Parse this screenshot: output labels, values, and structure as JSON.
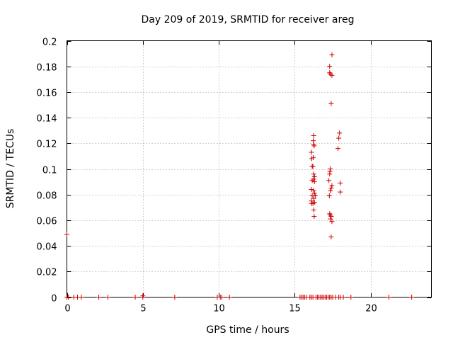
{
  "chart_data": {
    "type": "scatter",
    "title": "Day 209 of 2019, SRMTID for receiver areg",
    "xlabel": "GPS time / hours",
    "ylabel": "SRMTID / TECUs",
    "xlim": [
      0,
      24
    ],
    "ylim": [
      0,
      0.2
    ],
    "xticks": [
      0,
      5,
      10,
      15,
      20
    ],
    "xtick_labels": [
      "0",
      "5",
      "10",
      "15",
      "20"
    ],
    "yticks": [
      0,
      0.02,
      0.04,
      0.06,
      0.08,
      0.1,
      0.12,
      0.14,
      0.16,
      0.18,
      0.2
    ],
    "ytick_labels": [
      "0",
      "0.02",
      "0.04",
      "0.06",
      "0.08",
      "0.1",
      "0.12",
      "0.14",
      "0.16",
      "0.18",
      "0.2"
    ],
    "grid": true,
    "marker": "+",
    "color": "#cc0000",
    "series": [
      {
        "name": "areg",
        "points": [
          [
            0.0,
            0.049
          ],
          [
            0.0,
            0.0
          ],
          [
            0.1,
            0.0
          ],
          [
            0.45,
            0.0
          ],
          [
            0.7,
            0.0
          ],
          [
            0.95,
            0.0
          ],
          [
            2.1,
            0.0
          ],
          [
            2.7,
            0.0
          ],
          [
            4.5,
            0.0
          ],
          [
            5.0,
            0.0
          ],
          [
            5.0,
            0.001
          ],
          [
            7.1,
            0.0
          ],
          [
            9.9,
            0.0
          ],
          [
            10.1,
            0.0
          ],
          [
            10.2,
            0.0
          ],
          [
            10.7,
            0.0
          ],
          [
            15.35,
            0.0
          ],
          [
            15.45,
            0.0
          ],
          [
            15.55,
            0.0
          ],
          [
            15.65,
            0.0
          ],
          [
            15.75,
            0.0
          ],
          [
            16.0,
            0.0
          ],
          [
            16.1,
            0.0
          ],
          [
            16.2,
            0.0
          ],
          [
            16.4,
            0.0
          ],
          [
            16.5,
            0.0
          ],
          [
            16.6,
            0.0
          ],
          [
            16.7,
            0.0
          ],
          [
            16.8,
            0.0
          ],
          [
            16.9,
            0.0
          ],
          [
            17.0,
            0.0
          ],
          [
            17.1,
            0.0
          ],
          [
            17.2,
            0.0
          ],
          [
            17.3,
            0.0
          ],
          [
            17.4,
            0.0
          ],
          [
            17.5,
            0.0
          ],
          [
            17.7,
            0.0
          ],
          [
            17.9,
            0.0
          ],
          [
            18.0,
            0.0
          ],
          [
            18.2,
            0.0
          ],
          [
            18.7,
            0.0
          ],
          [
            21.2,
            0.0
          ],
          [
            22.7,
            0.0
          ],
          [
            16.1,
            0.113
          ],
          [
            16.12,
            0.108
          ],
          [
            16.15,
            0.102
          ],
          [
            16.15,
            0.091
          ],
          [
            16.1,
            0.084
          ],
          [
            16.15,
            0.079
          ],
          [
            16.1,
            0.075
          ],
          [
            16.12,
            0.073
          ],
          [
            16.25,
            0.126
          ],
          [
            16.22,
            0.122
          ],
          [
            16.25,
            0.119
          ],
          [
            16.28,
            0.118
          ],
          [
            16.22,
            0.109
          ],
          [
            16.2,
            0.102
          ],
          [
            16.25,
            0.096
          ],
          [
            16.3,
            0.094
          ],
          [
            16.25,
            0.092
          ],
          [
            16.3,
            0.09
          ],
          [
            16.25,
            0.083
          ],
          [
            16.3,
            0.081
          ],
          [
            16.35,
            0.079
          ],
          [
            16.25,
            0.077
          ],
          [
            16.3,
            0.074
          ],
          [
            16.2,
            0.073
          ],
          [
            16.25,
            0.068
          ],
          [
            16.28,
            0.063
          ],
          [
            17.45,
            0.189
          ],
          [
            17.3,
            0.18
          ],
          [
            17.3,
            0.175
          ],
          [
            17.35,
            0.174
          ],
          [
            17.45,
            0.173
          ],
          [
            17.4,
            0.151
          ],
          [
            17.35,
            0.1
          ],
          [
            17.32,
            0.098
          ],
          [
            17.3,
            0.096
          ],
          [
            17.25,
            0.091
          ],
          [
            17.45,
            0.087
          ],
          [
            17.4,
            0.085
          ],
          [
            17.35,
            0.083
          ],
          [
            17.28,
            0.079
          ],
          [
            17.3,
            0.065
          ],
          [
            17.35,
            0.064
          ],
          [
            17.4,
            0.063
          ],
          [
            17.35,
            0.061
          ],
          [
            17.45,
            0.059
          ],
          [
            17.4,
            0.047
          ],
          [
            17.95,
            0.128
          ],
          [
            17.9,
            0.124
          ],
          [
            17.85,
            0.116
          ],
          [
            18.0,
            0.089
          ],
          [
            18.0,
            0.082
          ]
        ]
      }
    ]
  }
}
